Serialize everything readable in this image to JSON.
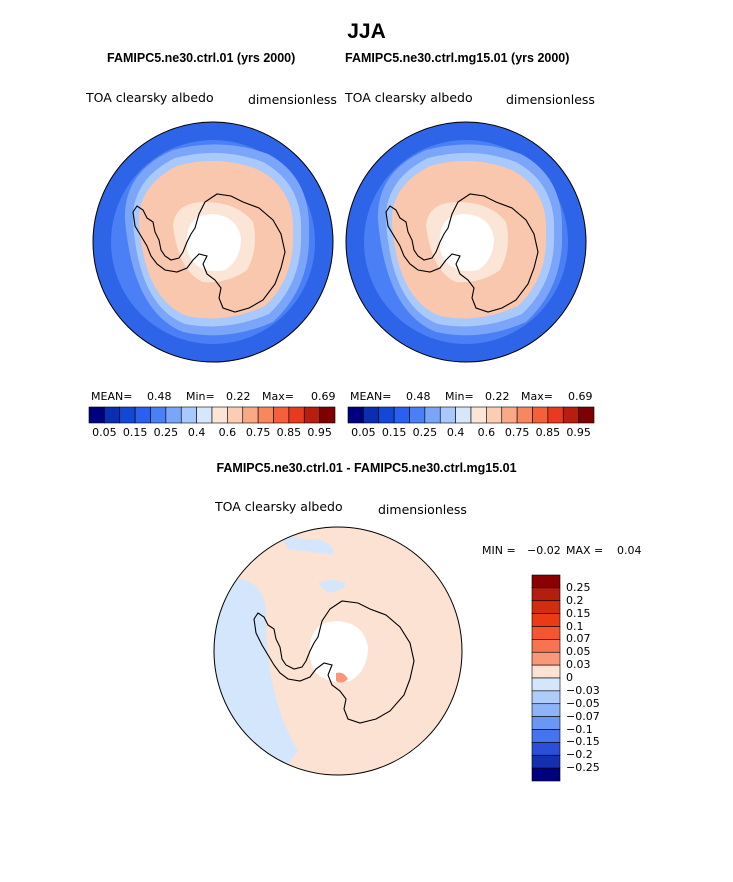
{
  "figure": {
    "season": "JJA",
    "panels": [
      {
        "title": "FAMIPC5.ne30.ctrl.01 (yrs 2000)",
        "variable": "TOA clearsky albedo",
        "units": "dimensionless",
        "mean_label": "MEAN=",
        "mean": "0.48",
        "min_label": "Min=",
        "min": "0.22",
        "max_label": "Max=",
        "max": "0.69"
      },
      {
        "title": "FAMIPC5.ne30.ctrl.mg15.01 (yrs 2000)",
        "variable": "TOA clearsky albedo",
        "units": "dimensionless",
        "mean_label": "MEAN=",
        "mean": "0.48",
        "min_label": "Min=",
        "min": "0.22",
        "max_label": "Max=",
        "max": "0.69"
      }
    ],
    "diff_panel": {
      "title": "FAMIPC5.ne30.ctrl.01 - FAMIPC5.ne30.ctrl.mg15.01",
      "variable": "TOA clearsky albedo",
      "units": "dimensionless",
      "min_label": "MIN =",
      "min": "−0.02",
      "max_label": "MAX =",
      "max": "0.04"
    }
  },
  "colorbar_main": {
    "tick_labels": [
      "0.05",
      "0.15",
      "0.25",
      "0.4",
      "0.6",
      "0.75",
      "0.85",
      "0.95"
    ],
    "colors": [
      "#00007f",
      "#0a2db2",
      "#1447d6",
      "#2a5ff0",
      "#4a7ff5",
      "#7aa5f8",
      "#a9c8fb",
      "#d6e7fc",
      "#fbe5d6",
      "#fbcdb5",
      "#f9a985",
      "#f7875e",
      "#f56038",
      "#e83a1e",
      "#b81d0e",
      "#7f0000"
    ]
  },
  "colorbar_diff": {
    "tick_labels": [
      "0.25",
      "0.2",
      "0.15",
      "0.1",
      "0.07",
      "0.05",
      "0.03",
      "0",
      "−0.03",
      "−0.05",
      "−0.07",
      "−0.1",
      "−0.15",
      "−0.2",
      "−0.25"
    ],
    "colors": [
      "#8b0000",
      "#b41e0c",
      "#d32d0f",
      "#ea3a16",
      "#f55530",
      "#f77452",
      "#f89878",
      "#fbe2d3",
      "#d4e6fb",
      "#b0cdfa",
      "#8eb4f8",
      "#6a96f4",
      "#4673ee",
      "#2a4fd8",
      "#1430b0",
      "#00007f"
    ]
  },
  "map_colors": {
    "ocean_low": "#2e64e8",
    "ocean_mid": "#4a7ff5",
    "ocean_light": "#7aa5f8",
    "ice_edge": "#a9c8fb",
    "ice_pale": "#d6e7fc",
    "land_main": "#f9c7ad",
    "land_light": "#fbe5d6",
    "pole": "#ffffff",
    "diff_pos": "#fbe2d3",
    "diff_neg": "#d4e6fb",
    "diff_posmid": "#f89878"
  }
}
